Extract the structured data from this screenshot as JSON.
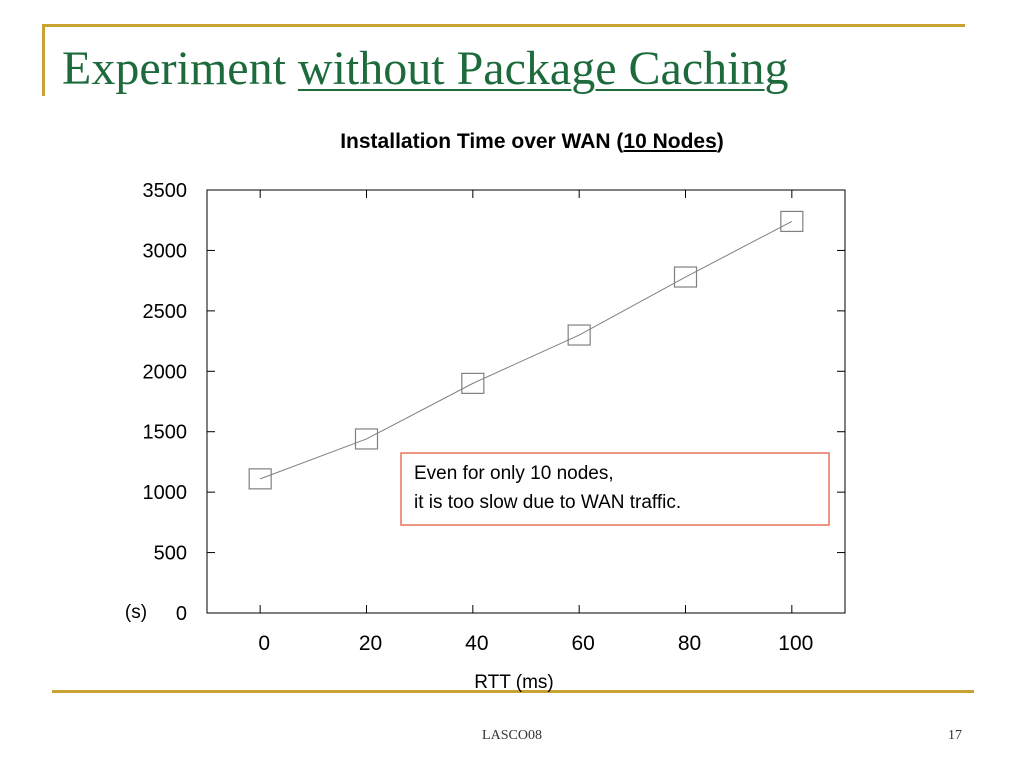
{
  "slide": {
    "title_plain": "Experiment ",
    "title_underlined": "without Package Caching",
    "footer_left": "LASCO08",
    "page_number": "17"
  },
  "chart_data": {
    "type": "line",
    "title_prefix": "Installation Time over WAN (",
    "title_underlined": "10 Nodes",
    "title_suffix": ")",
    "xlabel": "RTT (ms)",
    "ylabel": "(s)",
    "x": [
      0,
      20,
      40,
      60,
      80,
      100
    ],
    "xlim": [
      -10,
      110
    ],
    "ylim": [
      0,
      3500
    ],
    "xticks": [
      0,
      20,
      40,
      60,
      80,
      100
    ],
    "yticks": [
      0,
      500,
      1000,
      1500,
      2000,
      2500,
      3000,
      3500
    ],
    "series": [
      {
        "values": [
          1110,
          1440,
          1900,
          2300,
          2780,
          3240
        ],
        "marker": "open-square",
        "color": "#808080"
      }
    ],
    "grid": false,
    "annotation": {
      "lines": [
        "Even for only 10 nodes,",
        "it is too slow due to WAN traffic."
      ],
      "border_color": "#e8735a"
    }
  }
}
